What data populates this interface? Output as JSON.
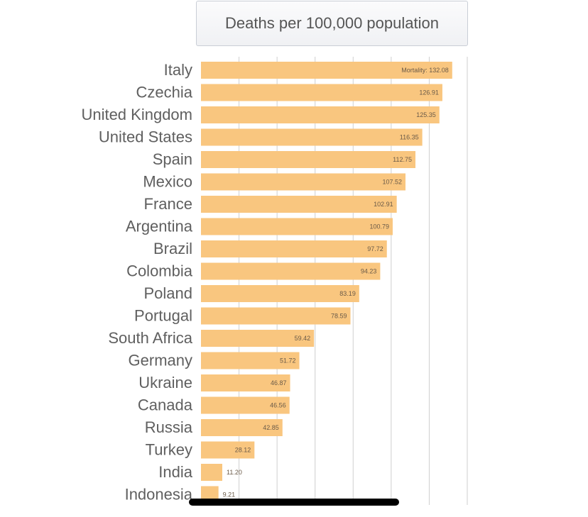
{
  "chart_data": {
    "type": "bar",
    "orientation": "horizontal",
    "title": "Deaths per 100,000 population",
    "categories": [
      "Italy",
      "Czechia",
      "United Kingdom",
      "United States",
      "Spain",
      "Mexico",
      "France",
      "Argentina",
      "Brazil",
      "Colombia",
      "Poland",
      "Portugal",
      "South Africa",
      "Germany",
      "Ukraine",
      "Canada",
      "Russia",
      "Turkey",
      "India",
      "Indonesia"
    ],
    "values": [
      132.08,
      126.91,
      125.35,
      116.35,
      112.75,
      107.52,
      102.91,
      100.79,
      97.72,
      94.23,
      83.19,
      78.59,
      59.42,
      51.72,
      46.87,
      46.56,
      42.85,
      28.12,
      11.2,
      9.21
    ],
    "value_labels": [
      "Mortality: 132.08",
      "126.91",
      "125.35",
      "116.35",
      "112.75",
      "107.52",
      "102.91",
      "100.79",
      "97.72",
      "94.23",
      "83.19",
      "78.59",
      "59.42",
      "51.72",
      "46.87",
      "46.56",
      "42.85",
      "28.12",
      "11.20",
      "9.21"
    ],
    "xlim": [
      0,
      140
    ],
    "grid": true,
    "colors": {
      "bar": "#f9c67f",
      "grid": "#cfcfcf",
      "text": "#5f5f5f"
    }
  }
}
